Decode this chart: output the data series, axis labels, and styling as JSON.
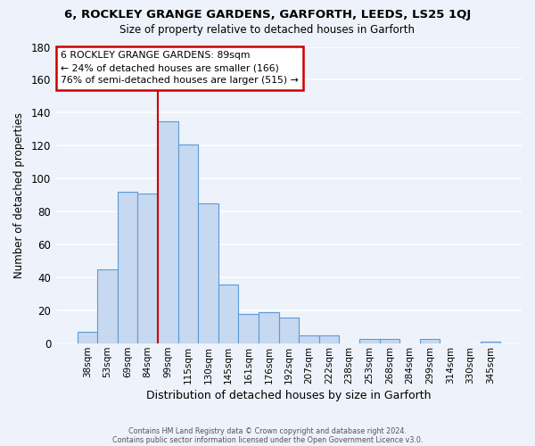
{
  "title": "6, ROCKLEY GRANGE GARDENS, GARFORTH, LEEDS, LS25 1QJ",
  "subtitle": "Size of property relative to detached houses in Garforth",
  "xlabel": "Distribution of detached houses by size in Garforth",
  "ylabel": "Number of detached properties",
  "bar_color": "#c6d9f0",
  "bar_edge_color": "#5b9bd5",
  "categories": [
    "38sqm",
    "53sqm",
    "69sqm",
    "84sqm",
    "99sqm",
    "115sqm",
    "130sqm",
    "145sqm",
    "161sqm",
    "176sqm",
    "192sqm",
    "207sqm",
    "222sqm",
    "238sqm",
    "253sqm",
    "268sqm",
    "284sqm",
    "299sqm",
    "314sqm",
    "330sqm",
    "345sqm"
  ],
  "values": [
    7,
    45,
    92,
    91,
    135,
    121,
    85,
    36,
    18,
    19,
    16,
    5,
    5,
    0,
    3,
    3,
    0,
    3,
    0,
    0,
    1
  ],
  "ylim": [
    0,
    180
  ],
  "yticks": [
    0,
    20,
    40,
    60,
    80,
    100,
    120,
    140,
    160,
    180
  ],
  "property_line_x": 3.5,
  "annotation_text_line1": "6 ROCKLEY GRANGE GARDENS: 89sqm",
  "annotation_text_line2": "← 24% of detached houses are smaller (166)",
  "annotation_text_line3": "76% of semi-detached houses are larger (515) →",
  "annotation_box_color": "#ffffff",
  "annotation_box_edge_color": "#cc0000",
  "property_line_color": "#cc0000",
  "footer_line1": "Contains HM Land Registry data © Crown copyright and database right 2024.",
  "footer_line2": "Contains public sector information licensed under the Open Government Licence v3.0.",
  "background_color": "#eef2fa",
  "grid_color": "#ffffff"
}
